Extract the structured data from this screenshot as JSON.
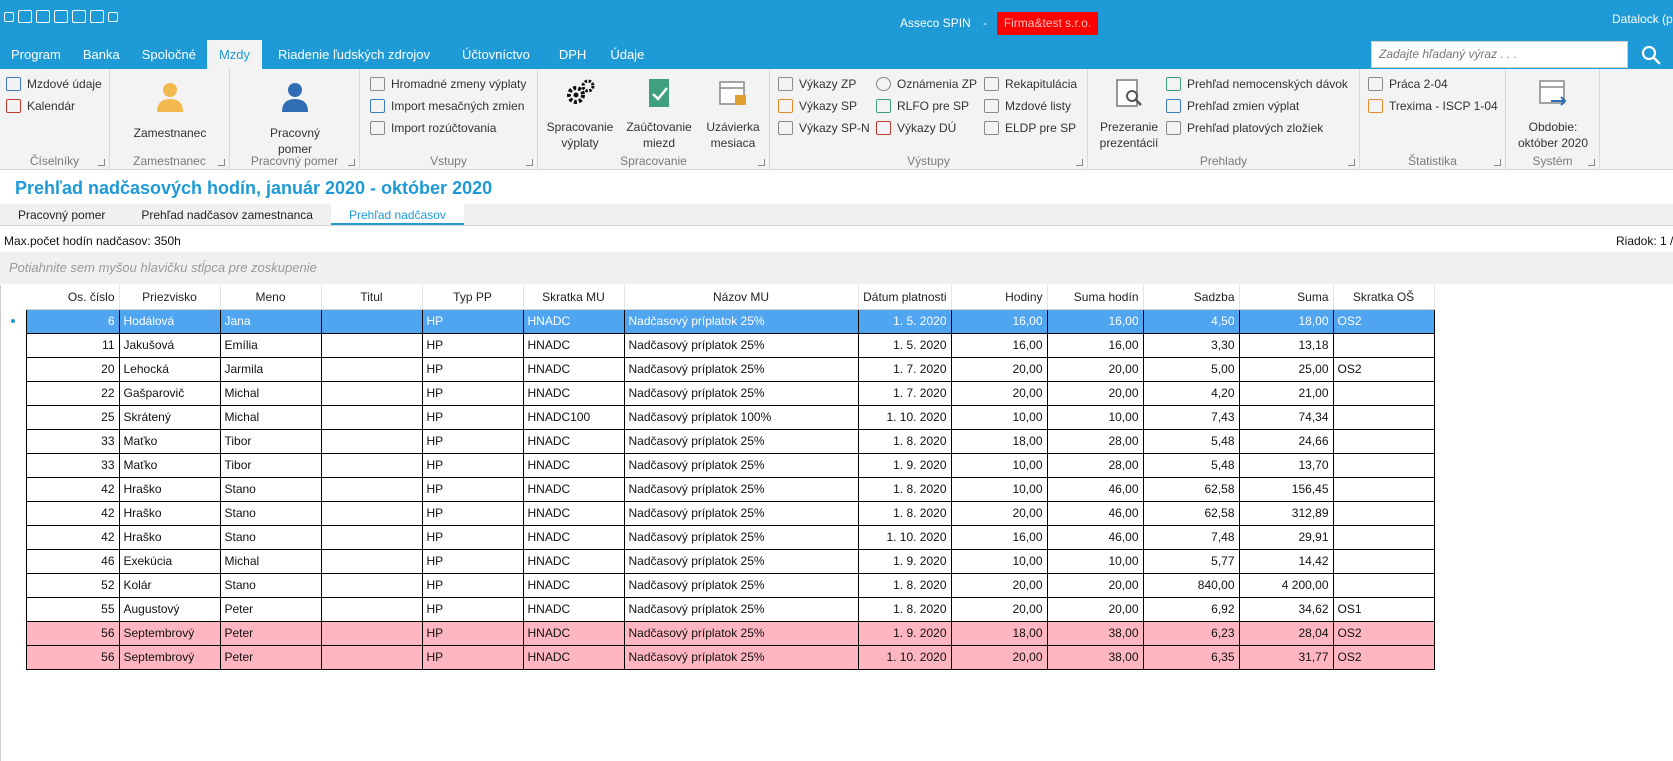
{
  "titlebar": {
    "app_name": "Asseco SPIN",
    "separator": "-",
    "company": "Firma&test s.r.o.",
    "user": "Datalock (p"
  },
  "menu": {
    "items": [
      "Program",
      "Banka",
      "Spoločné",
      "Mzdy",
      "Riadenie ľudských zdrojov",
      "Účtovníctvo",
      "DPH",
      "Údaje"
    ],
    "active": "Mzdy"
  },
  "search": {
    "placeholder": "Zadajte hľadaný výraz . . ."
  },
  "ribbon": {
    "ciselniky": {
      "caption": "Číselníky",
      "items": [
        "Mzdové údaje",
        "Kalendár"
      ]
    },
    "zamestnanec": {
      "caption": "Zamestnanec",
      "button": "Zamestnanec"
    },
    "pracovny_pomer": {
      "caption": "Pracovný pomer",
      "button_l1": "Pracovný",
      "button_l2": "pomer"
    },
    "vstupy": {
      "caption": "Vstupy",
      "items": [
        "Hromadné zmeny výplaty",
        "Import mesačných zmien",
        "Import rozúčtovania"
      ]
    },
    "spracovanie": {
      "caption": "Spracovanie",
      "b1_l1": "Spracovanie",
      "b1_l2": "výplaty",
      "b2_l1": "Zaúčtovanie",
      "b2_l2": "miezd",
      "b3_l1": "Uzávierka",
      "b3_l2": "mesiaca"
    },
    "vystupy": {
      "caption": "Výstupy",
      "col1": [
        "Výkazy ZP",
        "Výkazy SP",
        "Výkazy SP-N"
      ],
      "col2": [
        "Oznámenia ZP",
        "RLFO pre SP",
        "Výkazy DÚ"
      ],
      "col3": [
        "Rekapitulácia",
        "Mzdové listy",
        "ELDP pre SP"
      ]
    },
    "prehlady": {
      "caption": "Prehlady",
      "big_l1": "Prezeranie",
      "big_l2": "prezentácií",
      "items": [
        "Prehľad nemocenských dávok",
        "Prehľad zmien výplat",
        "Prehľad platových zložiek"
      ]
    },
    "statistika": {
      "caption": "Štatistika",
      "items": [
        "Práca 2-04",
        "Trexima - ISCP 1-04"
      ]
    },
    "system": {
      "caption": "Systém",
      "b_l1": "Obdobie:",
      "b_l2": "október 2020"
    }
  },
  "page": {
    "title": "Prehľad nadčasových hodín, január 2020 - október 2020",
    "tabs": [
      "Pracovný pomer",
      "Prehľad nadčasov zamestnanca",
      "Prehľad nadčasov"
    ],
    "active_tab": "Prehľad nadčasov",
    "max_hours": "Max.počet hodín nadčasov: 350h",
    "rows_label": "Riadok: 1 /",
    "group_hint": "Potiahnite sem myšou hlavičku stĺpca pre zoskupenie"
  },
  "grid": {
    "columns": [
      "Os. číslo",
      "Priezvisko",
      "Meno",
      "Titul",
      "Typ PP",
      "Skratka MU",
      "Názov MU",
      "Dátum platnosti",
      "Hodiny",
      "Suma hodín",
      "Sadzba",
      "Suma",
      "Skratka OŠ"
    ],
    "rows": [
      {
        "os": "6",
        "priezvisko": "Hodálová",
        "meno": "Jana",
        "titul": "",
        "typ": "HP",
        "skratka": "HNADC",
        "nazov": "Nadčasový príplatok 25%",
        "datum": "1. 5. 2020",
        "hodiny": "16,00",
        "suma_hodin": "16,00",
        "sadzba": "4,50",
        "suma": "18,00",
        "os_skratka": "OS2",
        "state": "selected"
      },
      {
        "os": "11",
        "priezvisko": "Jakušová",
        "meno": "Emília",
        "titul": "",
        "typ": "HP",
        "skratka": "HNADC",
        "nazov": "Nadčasový príplatok 25%",
        "datum": "1. 5. 2020",
        "hodiny": "16,00",
        "suma_hodin": "16,00",
        "sadzba": "3,30",
        "suma": "13,18",
        "os_skratka": "",
        "state": ""
      },
      {
        "os": "20",
        "priezvisko": "Lehocká",
        "meno": "Jarmila",
        "titul": "",
        "typ": "HP",
        "skratka": "HNADC",
        "nazov": "Nadčasový príplatok 25%",
        "datum": "1. 7. 2020",
        "hodiny": "20,00",
        "suma_hodin": "20,00",
        "sadzba": "5,00",
        "suma": "25,00",
        "os_skratka": "OS2",
        "state": ""
      },
      {
        "os": "22",
        "priezvisko": "Gašparovič",
        "meno": "Michal",
        "titul": "",
        "typ": "HP",
        "skratka": "HNADC",
        "nazov": "Nadčasový príplatok 25%",
        "datum": "1. 7. 2020",
        "hodiny": "20,00",
        "suma_hodin": "20,00",
        "sadzba": "4,20",
        "suma": "21,00",
        "os_skratka": "",
        "state": ""
      },
      {
        "os": "25",
        "priezvisko": "Skrátený",
        "meno": "Michal",
        "titul": "",
        "typ": "HP",
        "skratka": "HNADC100",
        "nazov": "Nadčasový príplatok 100%",
        "datum": "1. 10. 2020",
        "hodiny": "10,00",
        "suma_hodin": "10,00",
        "sadzba": "7,43",
        "suma": "74,34",
        "os_skratka": "",
        "state": ""
      },
      {
        "os": "33",
        "priezvisko": "Maťko",
        "meno": "Tibor",
        "titul": "",
        "typ": "HP",
        "skratka": "HNADC",
        "nazov": "Nadčasový príplatok 25%",
        "datum": "1. 8. 2020",
        "hodiny": "18,00",
        "suma_hodin": "28,00",
        "sadzba": "5,48",
        "suma": "24,66",
        "os_skratka": "",
        "state": ""
      },
      {
        "os": "33",
        "priezvisko": "Maťko",
        "meno": "Tibor",
        "titul": "",
        "typ": "HP",
        "skratka": "HNADC",
        "nazov": "Nadčasový príplatok 25%",
        "datum": "1. 9. 2020",
        "hodiny": "10,00",
        "suma_hodin": "28,00",
        "sadzba": "5,48",
        "suma": "13,70",
        "os_skratka": "",
        "state": ""
      },
      {
        "os": "42",
        "priezvisko": "Hraško",
        "meno": "Stano",
        "titul": "",
        "typ": "HP",
        "skratka": "HNADC",
        "nazov": "Nadčasový príplatok 25%",
        "datum": "1. 8. 2020",
        "hodiny": "10,00",
        "suma_hodin": "46,00",
        "sadzba": "62,58",
        "suma": "156,45",
        "os_skratka": "",
        "state": ""
      },
      {
        "os": "42",
        "priezvisko": "Hraško",
        "meno": "Stano",
        "titul": "",
        "typ": "HP",
        "skratka": "HNADC",
        "nazov": "Nadčasový príplatok 25%",
        "datum": "1. 8. 2020",
        "hodiny": "20,00",
        "suma_hodin": "46,00",
        "sadzba": "62,58",
        "suma": "312,89",
        "os_skratka": "",
        "state": ""
      },
      {
        "os": "42",
        "priezvisko": "Hraško",
        "meno": "Stano",
        "titul": "",
        "typ": "HP",
        "skratka": "HNADC",
        "nazov": "Nadčasový príplatok 25%",
        "datum": "1. 10. 2020",
        "hodiny": "16,00",
        "suma_hodin": "46,00",
        "sadzba": "7,48",
        "suma": "29,91",
        "os_skratka": "",
        "state": ""
      },
      {
        "os": "46",
        "priezvisko": "Exekúcia",
        "meno": "Michal",
        "titul": "",
        "typ": "HP",
        "skratka": "HNADC",
        "nazov": "Nadčasový príplatok 25%",
        "datum": "1. 9. 2020",
        "hodiny": "10,00",
        "suma_hodin": "10,00",
        "sadzba": "5,77",
        "suma": "14,42",
        "os_skratka": "",
        "state": ""
      },
      {
        "os": "52",
        "priezvisko": "Kolár",
        "meno": "Stano",
        "titul": "",
        "typ": "HP",
        "skratka": "HNADC",
        "nazov": "Nadčasový príplatok 25%",
        "datum": "1. 8. 2020",
        "hodiny": "20,00",
        "suma_hodin": "20,00",
        "sadzba": "840,00",
        "suma": "4 200,00",
        "os_skratka": "",
        "state": ""
      },
      {
        "os": "55",
        "priezvisko": "Augustový",
        "meno": "Peter",
        "titul": "",
        "typ": "HP",
        "skratka": "HNADC",
        "nazov": "Nadčasový príplatok 25%",
        "datum": "1. 8. 2020",
        "hodiny": "20,00",
        "suma_hodin": "20,00",
        "sadzba": "6,92",
        "suma": "34,62",
        "os_skratka": "OS1",
        "state": ""
      },
      {
        "os": "56",
        "priezvisko": "Septembrový",
        "meno": "Peter",
        "titul": "",
        "typ": "HP",
        "skratka": "HNADC",
        "nazov": "Nadčasový príplatok 25%",
        "datum": "1. 9. 2020",
        "hodiny": "18,00",
        "suma_hodin": "38,00",
        "sadzba": "6,23",
        "suma": "28,04",
        "os_skratka": "OS2",
        "state": "highlight"
      },
      {
        "os": "56",
        "priezvisko": "Septembrový",
        "meno": "Peter",
        "titul": "",
        "typ": "HP",
        "skratka": "HNADC",
        "nazov": "Nadčasový príplatok 25%",
        "datum": "1. 10. 2020",
        "hodiny": "20,00",
        "suma_hodin": "38,00",
        "sadzba": "6,35",
        "suma": "31,77",
        "os_skratka": "OS2",
        "state": "highlight"
      }
    ]
  },
  "colors": {
    "accent": "#1e9ad6",
    "selected_row": "#4fa5f0",
    "highlight_row": "#ffb6c1",
    "company_badge": "#ff0000"
  },
  "icons": {
    "quick_access": [
      "window-icon",
      "excel-icon",
      "pdf-icon",
      "mail-icon",
      "print-icon",
      "print-preview-icon",
      "export-icon"
    ]
  }
}
